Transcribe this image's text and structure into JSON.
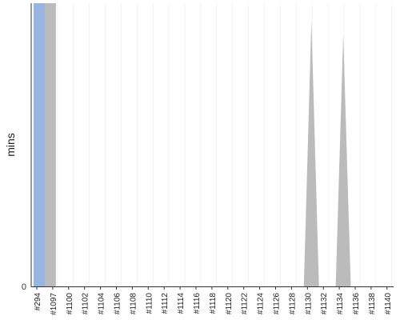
{
  "chart_data": {
    "type": "area",
    "ylabel": "mins",
    "yticks": [
      "0"
    ],
    "ylim": [
      0,
      100
    ],
    "categories": [
      "#294",
      "#1097",
      "#1100",
      "#1102",
      "#1104",
      "#1106",
      "#1108",
      "#1110",
      "#1112",
      "#1114",
      "#1116",
      "#1118",
      "#1120",
      "#1122",
      "#1124",
      "#1126",
      "#1128",
      "#1130",
      "#1132",
      "#1134",
      "#1136",
      "#1138",
      "#1140"
    ],
    "x_labels_shown": [
      "#294",
      "#1097",
      "#1100",
      "#1102",
      "#1104",
      "#1106",
      "#1108",
      "#1110",
      "#1112",
      "#1114",
      "#1116",
      "#1118",
      "#1120",
      "#1122",
      "#1124",
      "#1126",
      "#1128",
      "#1130",
      "#1132",
      "#1134",
      "#1136",
      "#1138",
      "#1140"
    ],
    "series": [
      {
        "role": "back",
        "color": "#bbbbbb",
        "values": [
          100,
          100,
          0,
          0,
          0,
          0,
          0,
          0,
          0,
          0,
          0,
          0,
          0,
          0,
          0,
          0,
          0,
          94,
          0,
          89,
          0,
          0,
          0
        ]
      },
      {
        "role": "front",
        "color": "#98b4e0",
        "values": [
          100,
          0,
          0,
          0,
          0,
          0,
          0,
          0,
          0,
          0,
          0,
          0,
          0,
          0,
          0,
          0,
          0,
          0,
          0,
          0,
          0,
          0,
          0
        ]
      }
    ],
    "colors": {
      "axis": "#333333",
      "grid": "#e8e8e8"
    }
  }
}
